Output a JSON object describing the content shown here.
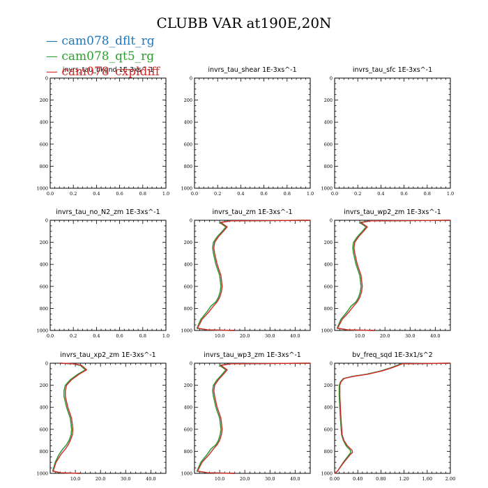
{
  "figure": {
    "title": "CLUBB VAR at190E,20N"
  },
  "legend": [
    {
      "label": "cam078_dflt_rg",
      "color": "#1f77b4"
    },
    {
      "label": "cam078_qt5_rg",
      "color": "#2ca02c"
    },
    {
      "label": "cam078_cxpldiff",
      "color": "#d62728"
    }
  ],
  "chart_data": [
    {
      "type": "line",
      "title": "invrs_tau_bkgnd  1E-3xs^-1",
      "xlim": [
        0,
        1.0
      ],
      "ylim": [
        0,
        1000
      ],
      "y_inverted": true,
      "xticks": [
        "0.0",
        "0.2",
        "0.4",
        "0.6",
        "0.8",
        "1.0"
      ],
      "yticks": [
        "0",
        "200",
        "400",
        "600",
        "800",
        "1000"
      ],
      "series": []
    },
    {
      "type": "line",
      "title": "invrs_tau_shear   1E-3xs^-1",
      "xlim": [
        0,
        1.0
      ],
      "ylim": [
        0,
        1000
      ],
      "y_inverted": true,
      "xticks": [
        "0.0",
        "0.2",
        "0.4",
        "0.6",
        "0.8",
        "1.0"
      ],
      "yticks": [
        "0",
        "200",
        "400",
        "600",
        "800",
        "1000"
      ],
      "series": []
    },
    {
      "type": "line",
      "title": "invrs_tau_sfc   1E-3xs^-1",
      "xlim": [
        0,
        1.0
      ],
      "ylim": [
        0,
        1000
      ],
      "y_inverted": true,
      "xticks": [
        "0.0",
        "0.2",
        "0.4",
        "0.6",
        "0.8",
        "1.0"
      ],
      "yticks": [
        "0",
        "200",
        "400",
        "600",
        "800",
        "1000"
      ],
      "series": []
    },
    {
      "type": "line",
      "title": "invrs_tau_no_N2_zm   1E-3xs^-1",
      "xlim": [
        0,
        1.0
      ],
      "ylim": [
        0,
        1000
      ],
      "y_inverted": true,
      "xticks": [
        "0.0",
        "0.2",
        "0.4",
        "0.6",
        "0.8",
        "1.0"
      ],
      "yticks": [
        "0",
        "200",
        "400",
        "600",
        "800",
        "1000"
      ],
      "series": []
    },
    {
      "type": "line",
      "title": "invrs_tau_zm   1E-3xs^-1",
      "xlim": [
        0,
        46
      ],
      "ylim": [
        0,
        1000
      ],
      "y_inverted": true,
      "xticks": [
        "10.0",
        "20.0",
        "30.0",
        "40.0"
      ],
      "xtick_values": [
        10,
        20,
        30,
        40
      ],
      "yticks": [
        "0",
        "200",
        "400",
        "600",
        "800",
        "1000"
      ],
      "series": [
        {
          "color": "#1f77b4",
          "x": [
            46,
            14,
            10,
            12.5,
            11,
            9,
            7.5,
            7.2,
            7.5,
            8.5,
            10,
            10.5,
            10.2,
            9.5,
            8.5,
            6.5,
            5,
            2.5,
            1,
            5,
            16
          ],
          "y": [
            0,
            5,
            20,
            60,
            100,
            150,
            200,
            250,
            300,
            400,
            500,
            600,
            650,
            700,
            740,
            780,
            830,
            900,
            980,
            995,
            1000
          ]
        },
        {
          "color": "#2ca02c",
          "x": [
            46,
            14,
            10,
            12.5,
            11,
            9,
            7.5,
            7.2,
            7.5,
            8.5,
            10,
            10.5,
            10.2,
            9.5,
            8.5,
            6.5,
            5,
            2.5,
            1,
            5,
            16
          ],
          "y": [
            0,
            5,
            20,
            60,
            100,
            150,
            200,
            250,
            300,
            400,
            500,
            600,
            650,
            700,
            740,
            780,
            830,
            900,
            980,
            995,
            1000
          ]
        },
        {
          "color": "#d62728",
          "x": [
            46,
            14.5,
            10.5,
            13,
            11.5,
            9.5,
            8,
            7.7,
            8,
            9,
            10.5,
            11,
            10.7,
            10,
            9,
            7.5,
            5.8,
            3,
            1.2,
            5.5,
            16
          ],
          "y": [
            0,
            5,
            20,
            60,
            100,
            150,
            200,
            250,
            300,
            400,
            500,
            600,
            650,
            700,
            740,
            780,
            830,
            900,
            980,
            995,
            1000
          ]
        }
      ]
    },
    {
      "type": "line",
      "title": "invrs_tau_wp2_zm   1E-3xs^-1",
      "xlim": [
        0,
        46
      ],
      "ylim": [
        0,
        1000
      ],
      "y_inverted": true,
      "xticks": [
        "10.0",
        "20.0",
        "30.0",
        "40.0"
      ],
      "xtick_values": [
        10,
        20,
        30,
        40
      ],
      "yticks": [
        "0",
        "200",
        "400",
        "600",
        "800",
        "1000"
      ],
      "series": [
        {
          "color": "#1f77b4",
          "x": [
            46,
            14,
            10,
            12.5,
            11,
            9,
            7.5,
            7.2,
            7.5,
            8.5,
            10,
            10.5,
            10.2,
            9.5,
            8.5,
            6.5,
            5,
            2.5,
            1,
            5,
            16
          ],
          "y": [
            0,
            5,
            20,
            60,
            100,
            150,
            200,
            250,
            300,
            400,
            500,
            600,
            650,
            700,
            740,
            780,
            830,
            900,
            980,
            995,
            1000
          ]
        },
        {
          "color": "#2ca02c",
          "x": [
            46,
            14,
            10,
            12.5,
            11,
            9,
            7.5,
            7.2,
            7.5,
            8.5,
            10,
            10.5,
            10.2,
            9.5,
            8.5,
            6.5,
            5,
            2.5,
            1,
            5,
            16
          ],
          "y": [
            0,
            5,
            20,
            60,
            100,
            150,
            200,
            250,
            300,
            400,
            500,
            600,
            650,
            700,
            740,
            780,
            830,
            900,
            980,
            995,
            1000
          ]
        },
        {
          "color": "#d62728",
          "x": [
            46,
            14.5,
            10.5,
            13,
            11.5,
            9.5,
            8,
            7.7,
            8,
            9,
            10.5,
            11,
            10.7,
            10,
            9,
            7.5,
            5.8,
            3,
            1.2,
            5.5,
            16
          ],
          "y": [
            0,
            5,
            20,
            60,
            100,
            150,
            200,
            250,
            300,
            400,
            500,
            600,
            650,
            700,
            740,
            780,
            830,
            900,
            980,
            995,
            1000
          ]
        }
      ]
    },
    {
      "type": "line",
      "title": "invrs_tau_xp2_zm   1E-3xs^-1",
      "xlim": [
        0,
        46
      ],
      "ylim": [
        0,
        1000
      ],
      "y_inverted": true,
      "xticks": [
        "10.0",
        "20.0",
        "30.0",
        "40.0"
      ],
      "xtick_values": [
        10,
        20,
        30,
        40
      ],
      "yticks": [
        "0",
        "200",
        "400",
        "600",
        "800",
        "1000"
      ],
      "series": [
        {
          "color": "#1f77b4",
          "x": [
            4,
            9,
            12,
            14,
            11,
            8,
            6,
            5.5,
            5.5,
            6.5,
            8,
            8.5,
            8.3,
            7.5,
            6.5,
            5,
            3.5,
            2,
            1,
            4,
            12
          ],
          "y": [
            0,
            5,
            20,
            60,
            100,
            150,
            200,
            250,
            300,
            400,
            500,
            600,
            650,
            700,
            740,
            780,
            830,
            900,
            980,
            995,
            1000
          ]
        },
        {
          "color": "#2ca02c",
          "x": [
            4,
            9,
            12,
            14,
            11,
            8,
            6,
            5.5,
            5.5,
            6.5,
            8,
            8.5,
            8.3,
            7.5,
            6.5,
            5,
            3.5,
            2,
            1,
            4,
            12
          ],
          "y": [
            0,
            5,
            20,
            60,
            100,
            150,
            200,
            250,
            300,
            400,
            500,
            600,
            650,
            700,
            740,
            780,
            830,
            900,
            980,
            995,
            1000
          ]
        },
        {
          "color": "#d62728",
          "x": [
            4,
            9.5,
            12.5,
            14.5,
            11.5,
            8.5,
            6.5,
            6,
            6,
            7,
            8.5,
            9,
            8.8,
            8,
            7.2,
            6,
            4.2,
            2.3,
            1.2,
            4.5,
            12
          ],
          "y": [
            0,
            5,
            20,
            60,
            100,
            150,
            200,
            250,
            300,
            400,
            500,
            600,
            650,
            700,
            740,
            780,
            830,
            900,
            980,
            995,
            1000
          ]
        }
      ]
    },
    {
      "type": "line",
      "title": "invrs_tau_wp3_zm   1E-3xs^-1",
      "xlim": [
        0,
        46
      ],
      "ylim": [
        0,
        1000
      ],
      "y_inverted": true,
      "xticks": [
        "10.0",
        "20.0",
        "30.0",
        "40.0"
      ],
      "xtick_values": [
        10,
        20,
        30,
        40
      ],
      "yticks": [
        "0",
        "200",
        "400",
        "600",
        "800",
        "1000"
      ],
      "series": [
        {
          "color": "#1f77b4",
          "x": [
            46,
            14,
            10,
            12.5,
            11,
            9,
            7.5,
            7.2,
            7.5,
            8.5,
            10,
            10.5,
            10.2,
            9.5,
            8.5,
            6.5,
            5,
            2.5,
            1,
            5,
            16
          ],
          "y": [
            0,
            5,
            20,
            60,
            100,
            150,
            200,
            250,
            300,
            400,
            500,
            600,
            650,
            700,
            740,
            780,
            830,
            900,
            980,
            995,
            1000
          ]
        },
        {
          "color": "#2ca02c",
          "x": [
            46,
            14,
            10,
            12.5,
            11,
            9,
            7.5,
            7.2,
            7.5,
            8.5,
            10,
            10.5,
            10.2,
            9.5,
            8.5,
            6.5,
            5,
            2.5,
            1,
            5,
            16
          ],
          "y": [
            0,
            5,
            20,
            60,
            100,
            150,
            200,
            250,
            300,
            400,
            500,
            600,
            650,
            700,
            740,
            780,
            830,
            900,
            980,
            995,
            1000
          ]
        },
        {
          "color": "#d62728",
          "x": [
            46,
            14.5,
            10.5,
            13,
            11.5,
            9.5,
            8,
            7.7,
            8,
            9,
            10.5,
            11,
            10.7,
            10,
            9,
            7.5,
            5.8,
            3,
            1.2,
            5.5,
            16
          ],
          "y": [
            0,
            5,
            20,
            60,
            100,
            150,
            200,
            250,
            300,
            400,
            500,
            600,
            650,
            700,
            740,
            780,
            830,
            900,
            980,
            995,
            1000
          ]
        }
      ]
    },
    {
      "type": "line",
      "title": "bv_freq_sqd   1E-3x1/s^2",
      "xlim": [
        0,
        2.0
      ],
      "ylim": [
        0,
        1000
      ],
      "y_inverted": true,
      "xticks": [
        "0.00",
        "0.40",
        "0.80",
        "1.20",
        "1.60",
        "2.00"
      ],
      "xtick_values": [
        0,
        0.4,
        0.8,
        1.2,
        1.6,
        2.0
      ],
      "yticks": [
        "0",
        "200",
        "400",
        "600",
        "800",
        "1000"
      ],
      "series": [
        {
          "color": "#1f77b4",
          "x": [
            2.0,
            1.15,
            0.98,
            0.8,
            0.55,
            0.3,
            0.15,
            0.1,
            0.08,
            0.08,
            0.1,
            0.12,
            0.15,
            0.2,
            0.27,
            0.28,
            0.25,
            0.15,
            0.05,
            0
          ],
          "y": [
            0,
            5,
            40,
            70,
            100,
            120,
            140,
            170,
            200,
            300,
            500,
            650,
            700,
            750,
            790,
            810,
            830,
            900,
            980,
            1000
          ]
        },
        {
          "color": "#2ca02c",
          "x": [
            2.0,
            1.15,
            0.98,
            0.8,
            0.55,
            0.3,
            0.15,
            0.1,
            0.08,
            0.08,
            0.1,
            0.12,
            0.15,
            0.2,
            0.27,
            0.28,
            0.25,
            0.15,
            0.05,
            0
          ],
          "y": [
            0,
            5,
            40,
            70,
            100,
            120,
            140,
            170,
            200,
            300,
            500,
            650,
            700,
            750,
            790,
            810,
            830,
            900,
            980,
            1000
          ]
        },
        {
          "color": "#d62728",
          "x": [
            2.0,
            1.17,
            1.0,
            0.82,
            0.57,
            0.32,
            0.16,
            0.11,
            0.09,
            0.09,
            0.11,
            0.13,
            0.16,
            0.22,
            0.3,
            0.31,
            0.27,
            0.16,
            0.05,
            0
          ],
          "y": [
            0,
            5,
            40,
            70,
            100,
            120,
            140,
            170,
            200,
            300,
            500,
            650,
            700,
            750,
            790,
            810,
            830,
            900,
            980,
            1000
          ]
        }
      ]
    }
  ]
}
